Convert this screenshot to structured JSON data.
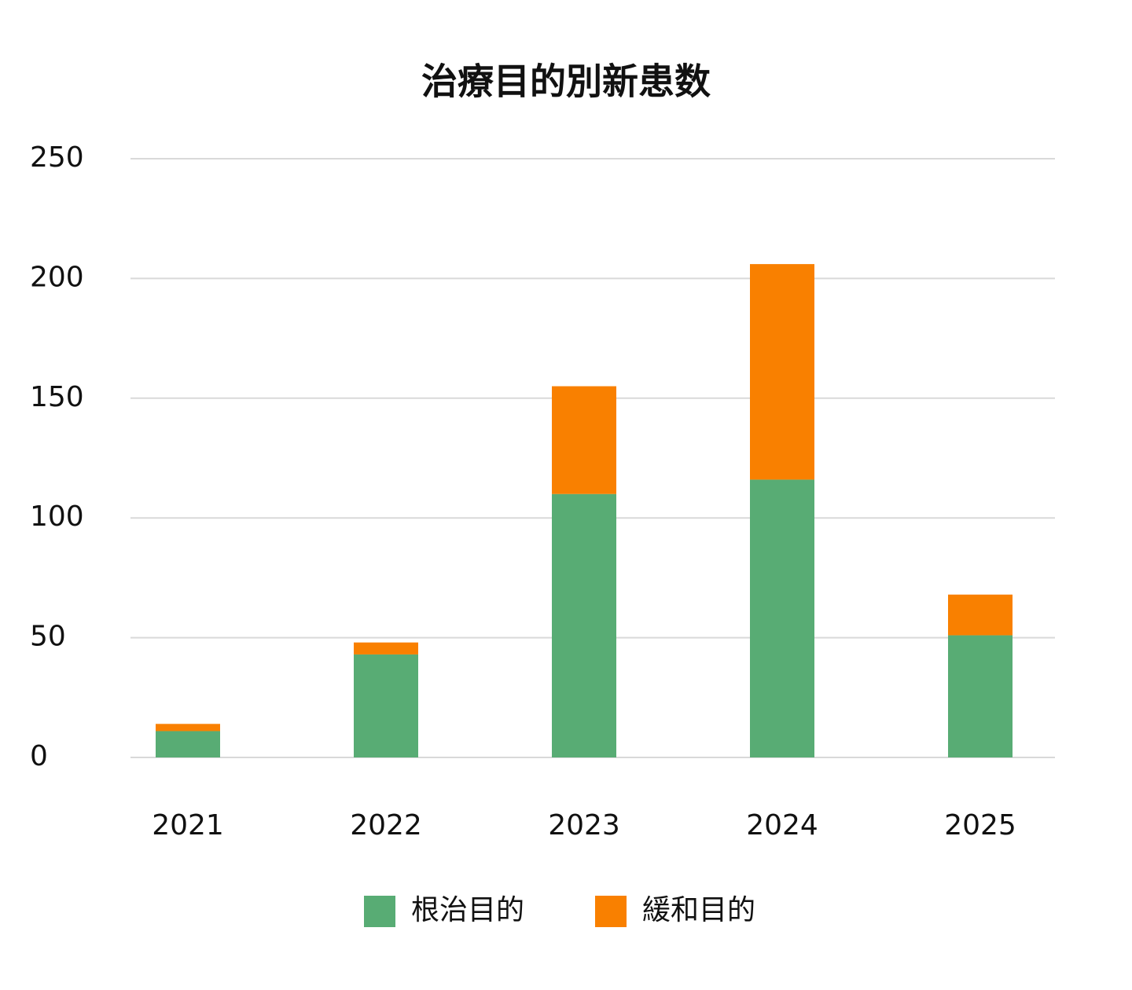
{
  "chart_data": {
    "type": "stacked_bar",
    "title": "治療目的別新患数",
    "categories": [
      "2021",
      "2022",
      "2023",
      "2024",
      "2025"
    ],
    "series": [
      {
        "name": "根治目的",
        "color": "#58ac74",
        "values": [
          11,
          43,
          110,
          116,
          51
        ]
      },
      {
        "name": "緩和目的",
        "color": "#f98000",
        "values": [
          3,
          5,
          45,
          90,
          17
        ]
      }
    ],
    "ylim": [
      0,
      250
    ],
    "yticks": [
      0,
      50,
      100,
      150,
      200,
      250
    ],
    "grid": true,
    "legend": "bottom"
  }
}
